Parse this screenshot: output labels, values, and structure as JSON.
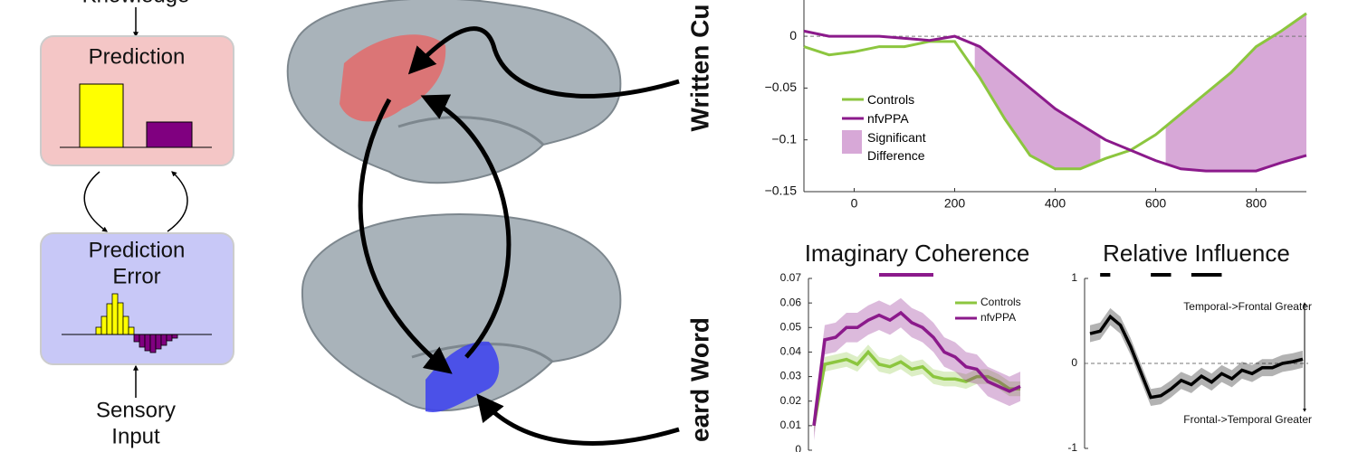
{
  "diagram": {
    "knowledge": "Knowledge",
    "prediction": "Prediction",
    "prediction_error": [
      "Prediction",
      "Error"
    ],
    "sensory_input": [
      "Sensory",
      "Input"
    ],
    "top_brain_label": "Written Cu",
    "bottom_brain_label": "eard Word"
  },
  "chart_data": [
    {
      "type": "line",
      "x": [
        -100,
        -50,
        0,
        50,
        100,
        150,
        200,
        250,
        300,
        350,
        400,
        450,
        500,
        550,
        600,
        650,
        700,
        750,
        800,
        850,
        900
      ],
      "series": [
        {
          "name": "Controls",
          "color": "#8cc63f",
          "values": [
            -0.01,
            -0.018,
            -0.015,
            -0.01,
            -0.01,
            -0.005,
            -0.005,
            -0.04,
            -0.08,
            -0.115,
            -0.128,
            -0.128,
            -0.118,
            -0.11,
            -0.095,
            -0.075,
            -0.055,
            -0.035,
            -0.01,
            0.005,
            0.022
          ]
        },
        {
          "name": "nfvPPA",
          "color": "#8b1a8b",
          "values": [
            0.005,
            0,
            0,
            0,
            -0.002,
            -0.004,
            0,
            -0.01,
            -0.03,
            -0.05,
            -0.07,
            -0.085,
            -0.1,
            -0.11,
            -0.12,
            -0.128,
            -0.13,
            -0.13,
            -0.13,
            -0.122,
            -0.115
          ]
        }
      ],
      "shading": {
        "name": "Significant Difference",
        "color": "#d7a8d7",
        "regions": [
          [
            240,
            490
          ],
          [
            620,
            900
          ]
        ]
      },
      "xlim": [
        -100,
        900
      ],
      "xticks": [
        0,
        200,
        400,
        600,
        800
      ],
      "ylim": [
        -0.15,
        0.035
      ],
      "yticks": [
        0,
        {
          "value": -0.05,
          "label": "−0.05"
        },
        {
          "value": -0.1,
          "label": "−0.1"
        },
        {
          "value": -0.15,
          "label": "−0.15"
        }
      ],
      "zero_line": true
    },
    {
      "type": "band-line",
      "title": "Imaginary Coherence",
      "series": [
        {
          "name": "Controls",
          "color": "#8cc63f",
          "error": 0.003,
          "values": [
            0.01,
            0.035,
            0.036,
            0.037,
            0.035,
            0.04,
            0.035,
            0.034,
            0.036,
            0.033,
            0.034,
            0.03,
            0.029,
            0.029,
            0.028,
            0.03,
            0.03,
            0.028,
            0.025,
            0.025
          ]
        },
        {
          "name": "nfvPPA",
          "color": "#8b1a8b",
          "error": 0.006,
          "values": [
            0.01,
            0.045,
            0.046,
            0.05,
            0.05,
            0.053,
            0.055,
            0.053,
            0.056,
            0.052,
            0.05,
            0.046,
            0.04,
            0.038,
            0.034,
            0.033,
            0.028,
            0.026,
            0.024,
            0.026
          ]
        }
      ],
      "significant_ranges": [
        [
          6,
          11
        ]
      ],
      "significance_color": "#8b1a8b",
      "ylim": [
        0,
        0.07
      ],
      "yticks": [
        0,
        0.01,
        0.02,
        0.03,
        0.04,
        0.05,
        0.06,
        0.07
      ]
    },
    {
      "type": "band-line",
      "title": "Relative Influence",
      "series": [
        {
          "color": "#000000",
          "error": 0.1,
          "values": [
            0.35,
            0.38,
            0.55,
            0.45,
            0.2,
            -0.1,
            -0.4,
            -0.38,
            -0.3,
            -0.2,
            -0.25,
            -0.15,
            -0.22,
            -0.12,
            -0.18,
            -0.08,
            -0.12,
            -0.05,
            -0.05,
            0,
            0.02,
            0.05
          ]
        }
      ],
      "significant_ranges": [
        [
          1,
          2
        ],
        [
          6,
          8
        ],
        [
          10,
          13
        ]
      ],
      "significance_color": "#000000",
      "annotations": [
        "Temporal->Frontal Greater",
        "Frontal->Temporal Greater"
      ],
      "ylim": [
        -1,
        1
      ],
      "yticks": [
        -1,
        0,
        1
      ],
      "zero_line": true
    }
  ]
}
